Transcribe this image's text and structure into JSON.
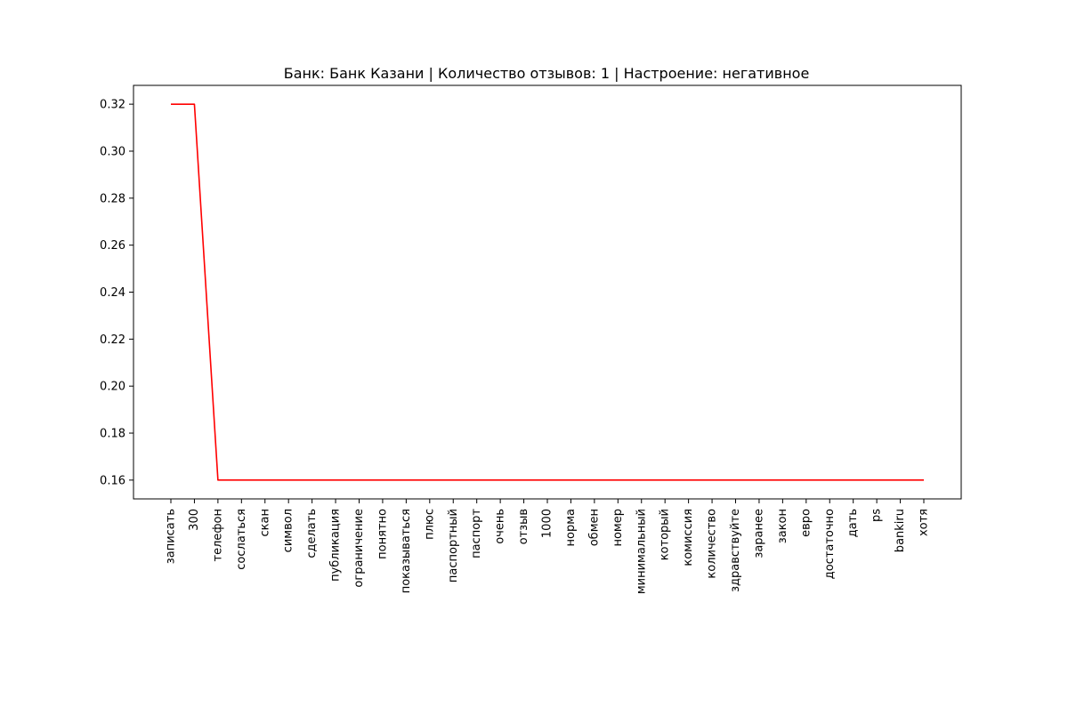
{
  "chart_data": {
    "type": "line",
    "title": "Банк: Банк Казани | Количество отзывов: 1 | Настроение: негативное",
    "xlabel": "",
    "ylabel": "",
    "categories": [
      "записать",
      "300",
      "телефон",
      "сослаться",
      "скан",
      "символ",
      "сделать",
      "публикация",
      "ограничение",
      "понятно",
      "показываться",
      "плюс",
      "паспортный",
      "паспорт",
      "очень",
      "отзыв",
      "1000",
      "норма",
      "обмен",
      "номер",
      "минимальный",
      "который",
      "комиссия",
      "количество",
      "здравствуйте",
      "заранее",
      "закон",
      "евро",
      "достаточно",
      "дать",
      "ps",
      "bankiru",
      "хотя"
    ],
    "series": [
      {
        "color": "#ff0000",
        "values": [
          0.32,
          0.32,
          0.16,
          0.16,
          0.16,
          0.16,
          0.16,
          0.16,
          0.16,
          0.16,
          0.16,
          0.16,
          0.16,
          0.16,
          0.16,
          0.16,
          0.16,
          0.16,
          0.16,
          0.16,
          0.16,
          0.16,
          0.16,
          0.16,
          0.16,
          0.16,
          0.16,
          0.16,
          0.16,
          0.16,
          0.16,
          0.16,
          0.16
        ]
      }
    ],
    "ylim": [
      0.152,
      0.328
    ],
    "yticks": [
      0.16,
      0.18,
      0.2,
      0.22,
      0.24,
      0.26,
      0.28,
      0.3,
      0.32
    ],
    "ytick_labels": [
      "0.16",
      "0.18",
      "0.20",
      "0.22",
      "0.24",
      "0.26",
      "0.28",
      "0.30",
      "0.32"
    ],
    "grid": false,
    "legend": "none"
  }
}
